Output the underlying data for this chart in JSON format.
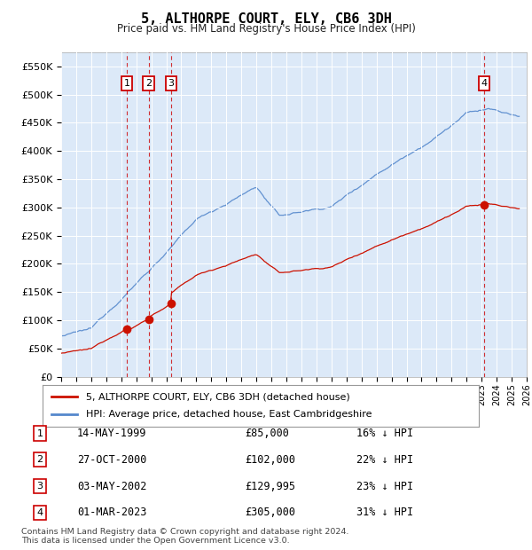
{
  "title": "5, ALTHORPE COURT, ELY, CB6 3DH",
  "subtitle": "Price paid vs. HM Land Registry's House Price Index (HPI)",
  "footer1": "Contains HM Land Registry data © Crown copyright and database right 2024.",
  "footer2": "This data is licensed under the Open Government Licence v3.0.",
  "legend_red": "5, ALTHORPE COURT, ELY, CB6 3DH (detached house)",
  "legend_blue": "HPI: Average price, detached house, East Cambridgeshire",
  "sales": [
    {
      "num": 1,
      "date": "14-MAY-1999",
      "price": 85000,
      "pct": "16% ↓ HPI",
      "year": 1999.37
    },
    {
      "num": 2,
      "date": "27-OCT-2000",
      "price": 102000,
      "pct": "22% ↓ HPI",
      "year": 2000.82
    },
    {
      "num": 3,
      "date": "03-MAY-2002",
      "price": 129995,
      "pct": "23% ↓ HPI",
      "year": 2002.33
    },
    {
      "num": 4,
      "date": "01-MAR-2023",
      "price": 305000,
      "pct": "31% ↓ HPI",
      "year": 2023.17
    }
  ],
  "ylim": [
    0,
    575000
  ],
  "xlim_start": 1995,
  "xlim_end": 2026,
  "background_color": "#dce9f8",
  "hatch_color": "#b0c8e8",
  "red_color": "#cc1100",
  "blue_color": "#5588cc"
}
